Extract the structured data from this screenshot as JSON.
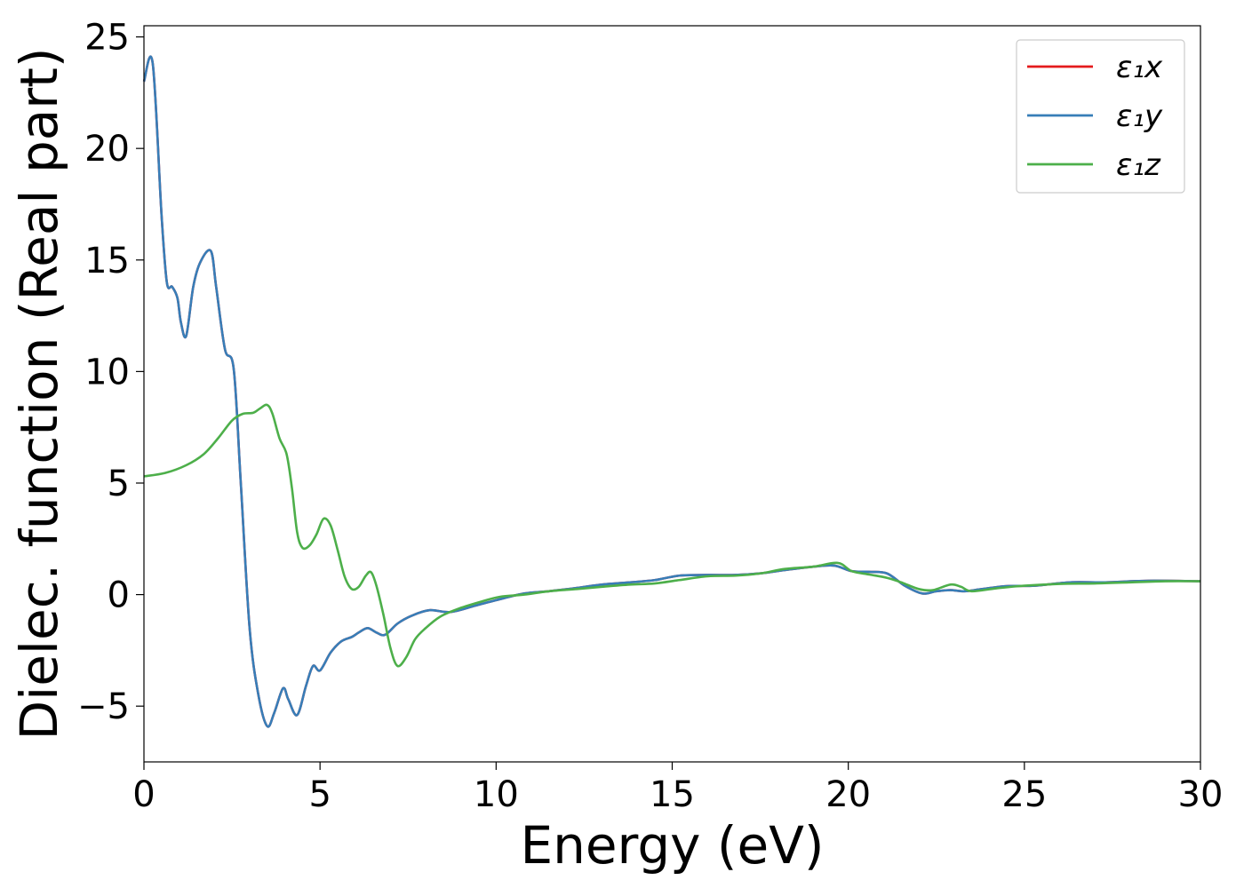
{
  "chart_data": {
    "type": "line",
    "xlabel": "Energy (eV)",
    "ylabel": "Dielec. function (Real part)",
    "xlim": [
      0,
      30
    ],
    "ylim": [
      -7.5,
      25.5
    ],
    "xticks": [
      0,
      5,
      10,
      15,
      20,
      25,
      30
    ],
    "yticks": [
      -5,
      0,
      5,
      10,
      15,
      20,
      25
    ],
    "xtick_labels": [
      "0",
      "5",
      "10",
      "15",
      "20",
      "25",
      "30"
    ],
    "ytick_labels": [
      "−5",
      "0",
      "5",
      "10",
      "15",
      "20",
      "25"
    ],
    "grid": false,
    "legend_position": "top-right",
    "series": [
      {
        "name": "ε₁x",
        "color": "#e41a1c",
        "x": [
          0,
          0.25,
          0.5,
          0.65,
          0.8,
          0.95,
          1.05,
          1.2,
          1.4,
          1.6,
          1.9,
          2.05,
          2.3,
          2.55,
          2.75,
          3.0,
          3.25,
          3.5,
          3.7,
          3.95,
          4.1,
          4.35,
          4.6,
          4.8,
          5.0,
          5.3,
          5.6,
          5.9,
          6.1,
          6.35,
          6.6,
          6.85,
          7.2,
          7.6,
          8.1,
          8.7,
          9.4,
          10.0,
          10.8,
          11.5,
          12.3,
          13.0,
          13.8,
          14.5,
          15.2,
          16.0,
          16.8,
          17.5,
          18.2,
          19.0,
          19.6,
          20.1,
          20.6,
          21.1,
          21.6,
          22.1,
          22.5,
          22.9,
          23.3,
          23.8,
          24.5,
          25.3,
          26.3,
          27.3,
          28.5,
          30.0
        ],
        "y": [
          23.0,
          23.8,
          17.0,
          14.0,
          13.8,
          13.3,
          12.2,
          11.6,
          13.8,
          14.9,
          15.4,
          13.8,
          11.0,
          10.1,
          5.0,
          -1.5,
          -4.5,
          -5.9,
          -5.3,
          -4.2,
          -4.7,
          -5.4,
          -4.1,
          -3.2,
          -3.4,
          -2.6,
          -2.1,
          -1.9,
          -1.7,
          -1.5,
          -1.7,
          -1.8,
          -1.3,
          -0.95,
          -0.7,
          -0.78,
          -0.5,
          -0.25,
          0.05,
          0.15,
          0.3,
          0.45,
          0.55,
          0.65,
          0.85,
          0.88,
          0.88,
          0.95,
          1.1,
          1.25,
          1.3,
          1.05,
          1.02,
          0.95,
          0.4,
          0.05,
          0.15,
          0.2,
          0.15,
          0.25,
          0.38,
          0.4,
          0.55,
          0.55,
          0.62,
          0.6
        ]
      },
      {
        "name": "ε₁y",
        "color": "#377eb8",
        "x": [
          0,
          0.25,
          0.5,
          0.65,
          0.8,
          0.95,
          1.05,
          1.2,
          1.4,
          1.6,
          1.9,
          2.05,
          2.3,
          2.55,
          2.75,
          3.0,
          3.25,
          3.5,
          3.7,
          3.95,
          4.1,
          4.35,
          4.6,
          4.8,
          5.0,
          5.3,
          5.6,
          5.9,
          6.1,
          6.35,
          6.6,
          6.85,
          7.2,
          7.6,
          8.1,
          8.7,
          9.4,
          10.0,
          10.8,
          11.5,
          12.3,
          13.0,
          13.8,
          14.5,
          15.2,
          16.0,
          16.8,
          17.5,
          18.2,
          19.0,
          19.6,
          20.1,
          20.6,
          21.1,
          21.6,
          22.1,
          22.5,
          22.9,
          23.3,
          23.8,
          24.5,
          25.3,
          26.3,
          27.3,
          28.5,
          30.0
        ],
        "y": [
          23.0,
          23.8,
          17.0,
          14.0,
          13.8,
          13.3,
          12.2,
          11.6,
          13.8,
          14.9,
          15.4,
          13.8,
          11.0,
          10.1,
          5.0,
          -1.5,
          -4.5,
          -5.9,
          -5.3,
          -4.2,
          -4.7,
          -5.4,
          -4.1,
          -3.2,
          -3.4,
          -2.6,
          -2.1,
          -1.9,
          -1.7,
          -1.5,
          -1.7,
          -1.8,
          -1.3,
          -0.95,
          -0.7,
          -0.78,
          -0.5,
          -0.25,
          0.05,
          0.15,
          0.3,
          0.45,
          0.55,
          0.65,
          0.85,
          0.88,
          0.88,
          0.95,
          1.1,
          1.25,
          1.3,
          1.05,
          1.02,
          0.95,
          0.4,
          0.05,
          0.15,
          0.2,
          0.15,
          0.25,
          0.38,
          0.4,
          0.55,
          0.55,
          0.62,
          0.6
        ]
      },
      {
        "name": "ε₁z",
        "color": "#4daf4a",
        "x": [
          0,
          0.6,
          1.2,
          1.7,
          2.1,
          2.5,
          2.8,
          3.1,
          3.3,
          3.5,
          3.65,
          3.85,
          4.05,
          4.2,
          4.35,
          4.5,
          4.7,
          4.9,
          5.1,
          5.3,
          5.5,
          5.7,
          5.9,
          6.1,
          6.3,
          6.45,
          6.6,
          6.8,
          7.0,
          7.2,
          7.45,
          7.7,
          8.0,
          8.4,
          8.9,
          9.5,
          10.1,
          10.8,
          11.5,
          12.3,
          13.0,
          13.8,
          14.5,
          15.2,
          16.0,
          16.8,
          17.5,
          18.2,
          19.0,
          19.7,
          20.1,
          20.6,
          21.1,
          21.5,
          22.0,
          22.4,
          22.9,
          23.2,
          23.5,
          24.2,
          25.0,
          26.0,
          27.0,
          28.0,
          29.0,
          30.0
        ],
        "y": [
          5.3,
          5.45,
          5.8,
          6.3,
          7.0,
          7.8,
          8.1,
          8.15,
          8.35,
          8.5,
          8.1,
          7.0,
          6.3,
          4.8,
          2.8,
          2.1,
          2.2,
          2.7,
          3.4,
          3.1,
          2.0,
          0.8,
          0.25,
          0.35,
          0.85,
          1.0,
          0.4,
          -0.9,
          -2.4,
          -3.2,
          -2.8,
          -2.0,
          -1.5,
          -1.0,
          -0.65,
          -0.35,
          -0.1,
          0.0,
          0.15,
          0.25,
          0.35,
          0.45,
          0.5,
          0.65,
          0.82,
          0.85,
          0.95,
          1.15,
          1.25,
          1.42,
          1.05,
          0.9,
          0.75,
          0.55,
          0.25,
          0.2,
          0.45,
          0.35,
          0.15,
          0.28,
          0.4,
          0.48,
          0.5,
          0.55,
          0.6,
          0.6
        ]
      }
    ]
  }
}
